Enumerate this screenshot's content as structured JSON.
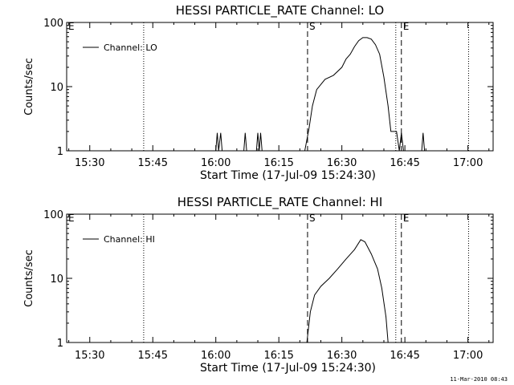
{
  "footer_timestamp": "11-Mar-2010 08:43",
  "chart_data": [
    {
      "type": "line",
      "title": "HESSI PARTICLE_RATE Channel: LO",
      "xlabel": "Start Time (17-Jul-09 15:24:30)",
      "ylabel": "Counts/sec",
      "y_scale": "log",
      "ylim": [
        1,
        100
      ],
      "xlim": [
        "15:24:30",
        "17:06:00"
      ],
      "xticks": [
        "15:30",
        "15:45",
        "16:00",
        "16:15",
        "16:30",
        "16:45",
        "17:00"
      ],
      "yticks": [
        "1",
        "10",
        "100"
      ],
      "legend": {
        "label": "Channel: LO",
        "position": "top-left"
      },
      "annotations": [
        {
          "label": "E",
          "time": "15:24:30",
          "style": "solid"
        },
        {
          "label": "S",
          "time": "16:21:50",
          "style": "dashed"
        },
        {
          "label": "E",
          "time": "16:44:10",
          "style": "dashed"
        }
      ],
      "dotted_lines": [
        "15:42:50",
        "16:42:50",
        "17:00:10"
      ],
      "series": [
        {
          "name": "Channel: LO",
          "points": [
            [
              "16:00:00",
              1
            ],
            [
              "16:00:20",
              1.9
            ],
            [
              "16:00:40",
              1
            ],
            [
              "16:01:10",
              1.9
            ],
            [
              "16:01:30",
              1
            ],
            [
              "16:06:40",
              1
            ],
            [
              "16:07:00",
              1.9
            ],
            [
              "16:07:20",
              1
            ],
            [
              "16:09:40",
              1
            ],
            [
              "16:10:00",
              1.9
            ],
            [
              "16:10:20",
              1
            ],
            [
              "16:10:40",
              1.9
            ],
            [
              "16:11:00",
              1
            ],
            [
              "16:21:10",
              1
            ],
            [
              "16:22:10",
              2.2
            ],
            [
              "16:23:00",
              5
            ],
            [
              "16:24:00",
              9
            ],
            [
              "16:26:00",
              13
            ],
            [
              "16:28:00",
              15
            ],
            [
              "16:30:00",
              20
            ],
            [
              "16:31:00",
              27
            ],
            [
              "16:32:00",
              32
            ],
            [
              "16:33:00",
              42
            ],
            [
              "16:34:00",
              52
            ],
            [
              "16:35:00",
              58
            ],
            [
              "16:36:00",
              58
            ],
            [
              "16:37:00",
              55
            ],
            [
              "16:38:00",
              45
            ],
            [
              "16:39:00",
              32
            ],
            [
              "16:40:00",
              14
            ],
            [
              "16:41:00",
              5
            ],
            [
              "16:41:40",
              2
            ],
            [
              "16:43:00",
              2
            ],
            [
              "16:43:40",
              1
            ],
            [
              "16:44:10",
              1.9
            ],
            [
              "16:44:40",
              1
            ],
            [
              "16:49:00",
              1
            ],
            [
              "16:49:20",
              1.9
            ],
            [
              "16:49:40",
              1
            ]
          ]
        }
      ]
    },
    {
      "type": "line",
      "title": "HESSI PARTICLE_RATE Channel: HI",
      "xlabel": "Start Time (17-Jul-09 15:24:30)",
      "ylabel": "Counts/sec",
      "y_scale": "log",
      "ylim": [
        1,
        100
      ],
      "xlim": [
        "15:24:30",
        "17:06:00"
      ],
      "xticks": [
        "15:30",
        "15:45",
        "16:00",
        "16:15",
        "16:30",
        "16:45",
        "17:00"
      ],
      "yticks": [
        "1",
        "10",
        "100"
      ],
      "legend": {
        "label": "Channel: HI",
        "position": "top-left"
      },
      "annotations": [
        {
          "label": "E",
          "time": "15:24:30",
          "style": "solid"
        },
        {
          "label": "S",
          "time": "16:21:50",
          "style": "dashed"
        },
        {
          "label": "E",
          "time": "16:44:10",
          "style": "dashed"
        }
      ],
      "dotted_lines": [
        "15:42:50",
        "16:42:50",
        "17:00:10"
      ],
      "series": [
        {
          "name": "Channel: HI",
          "points": [
            [
              "16:21:40",
              1
            ],
            [
              "16:22:30",
              3
            ],
            [
              "16:23:30",
              5.5
            ],
            [
              "16:25:00",
              7.5
            ],
            [
              "16:27:00",
              10
            ],
            [
              "16:29:00",
              14
            ],
            [
              "16:31:00",
              20
            ],
            [
              "16:33:00",
              28
            ],
            [
              "16:34:30",
              40
            ],
            [
              "16:35:30",
              37
            ],
            [
              "16:37:00",
              24
            ],
            [
              "16:38:30",
              14
            ],
            [
              "16:39:30",
              7
            ],
            [
              "16:40:30",
              2.5
            ],
            [
              "16:41:00",
              1
            ]
          ]
        }
      ]
    }
  ]
}
